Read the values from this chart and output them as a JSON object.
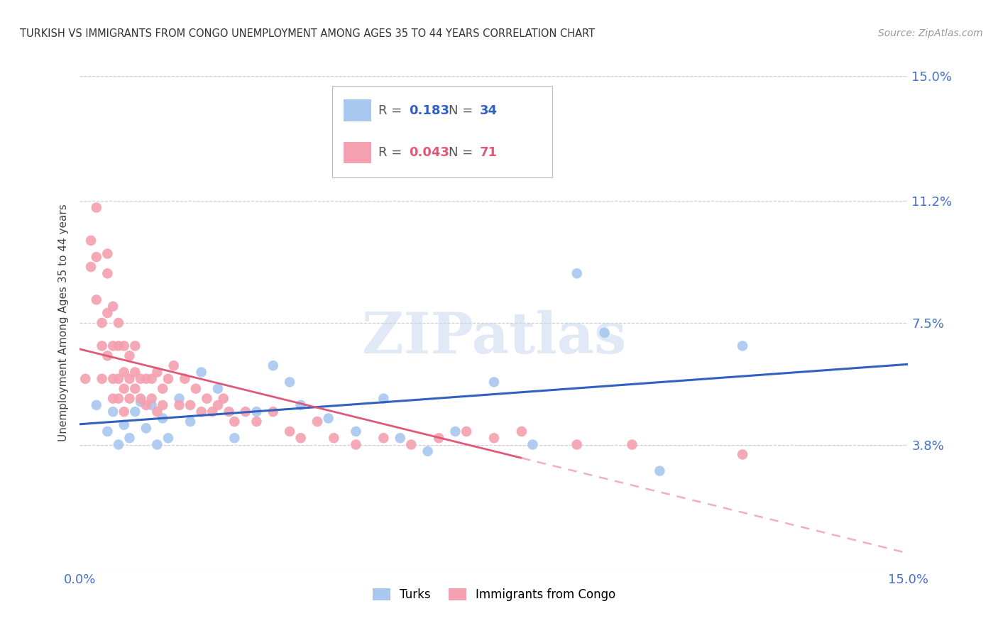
{
  "title": "TURKISH VS IMMIGRANTS FROM CONGO UNEMPLOYMENT AMONG AGES 35 TO 44 YEARS CORRELATION CHART",
  "source": "Source: ZipAtlas.com",
  "ylabel": "Unemployment Among Ages 35 to 44 years",
  "xlim": [
    0.0,
    0.15
  ],
  "ylim": [
    0.0,
    0.15
  ],
  "ytick_vals": [
    0.0,
    0.038,
    0.075,
    0.112,
    0.15
  ],
  "ytick_labels": [
    "",
    "3.8%",
    "7.5%",
    "11.2%",
    "15.0%"
  ],
  "xtick_vals": [
    0.0,
    0.15
  ],
  "xtick_labels": [
    "0.0%",
    "15.0%"
  ],
  "turks_R": 0.183,
  "turks_N": 34,
  "congo_R": 0.043,
  "congo_N": 71,
  "turks_color": "#a8c8f0",
  "congo_color": "#f4a0b0",
  "turks_line_color": "#3060c0",
  "congo_line_color": "#e05878",
  "congo_dash_color": "#f0b0bc",
  "background_color": "#ffffff",
  "turks_x": [
    0.003,
    0.005,
    0.006,
    0.007,
    0.008,
    0.009,
    0.01,
    0.011,
    0.012,
    0.013,
    0.014,
    0.015,
    0.016,
    0.018,
    0.02,
    0.022,
    0.025,
    0.028,
    0.032,
    0.035,
    0.038,
    0.04,
    0.045,
    0.05,
    0.055,
    0.058,
    0.063,
    0.068,
    0.075,
    0.082,
    0.09,
    0.095,
    0.105,
    0.12
  ],
  "turks_y": [
    0.05,
    0.042,
    0.048,
    0.038,
    0.044,
    0.04,
    0.048,
    0.051,
    0.043,
    0.05,
    0.038,
    0.046,
    0.04,
    0.052,
    0.045,
    0.06,
    0.055,
    0.04,
    0.048,
    0.062,
    0.057,
    0.05,
    0.046,
    0.042,
    0.052,
    0.04,
    0.036,
    0.042,
    0.057,
    0.038,
    0.09,
    0.072,
    0.03,
    0.068
  ],
  "congo_x": [
    0.001,
    0.002,
    0.002,
    0.003,
    0.003,
    0.003,
    0.004,
    0.004,
    0.004,
    0.005,
    0.005,
    0.005,
    0.005,
    0.006,
    0.006,
    0.006,
    0.006,
    0.007,
    0.007,
    0.007,
    0.007,
    0.008,
    0.008,
    0.008,
    0.008,
    0.009,
    0.009,
    0.009,
    0.01,
    0.01,
    0.01,
    0.011,
    0.011,
    0.012,
    0.012,
    0.013,
    0.013,
    0.014,
    0.014,
    0.015,
    0.015,
    0.016,
    0.017,
    0.018,
    0.019,
    0.02,
    0.021,
    0.022,
    0.023,
    0.024,
    0.025,
    0.026,
    0.027,
    0.028,
    0.03,
    0.032,
    0.035,
    0.038,
    0.04,
    0.043,
    0.046,
    0.05,
    0.055,
    0.06,
    0.065,
    0.07,
    0.075,
    0.08,
    0.09,
    0.1,
    0.12
  ],
  "congo_y": [
    0.058,
    0.1,
    0.092,
    0.11,
    0.095,
    0.082,
    0.075,
    0.068,
    0.058,
    0.096,
    0.09,
    0.078,
    0.065,
    0.08,
    0.068,
    0.058,
    0.052,
    0.075,
    0.068,
    0.058,
    0.052,
    0.068,
    0.06,
    0.055,
    0.048,
    0.065,
    0.058,
    0.052,
    0.068,
    0.06,
    0.055,
    0.058,
    0.052,
    0.058,
    0.05,
    0.058,
    0.052,
    0.06,
    0.048,
    0.055,
    0.05,
    0.058,
    0.062,
    0.05,
    0.058,
    0.05,
    0.055,
    0.048,
    0.052,
    0.048,
    0.05,
    0.052,
    0.048,
    0.045,
    0.048,
    0.045,
    0.048,
    0.042,
    0.04,
    0.045,
    0.04,
    0.038,
    0.04,
    0.038,
    0.04,
    0.042,
    0.04,
    0.042,
    0.038,
    0.038,
    0.035
  ]
}
